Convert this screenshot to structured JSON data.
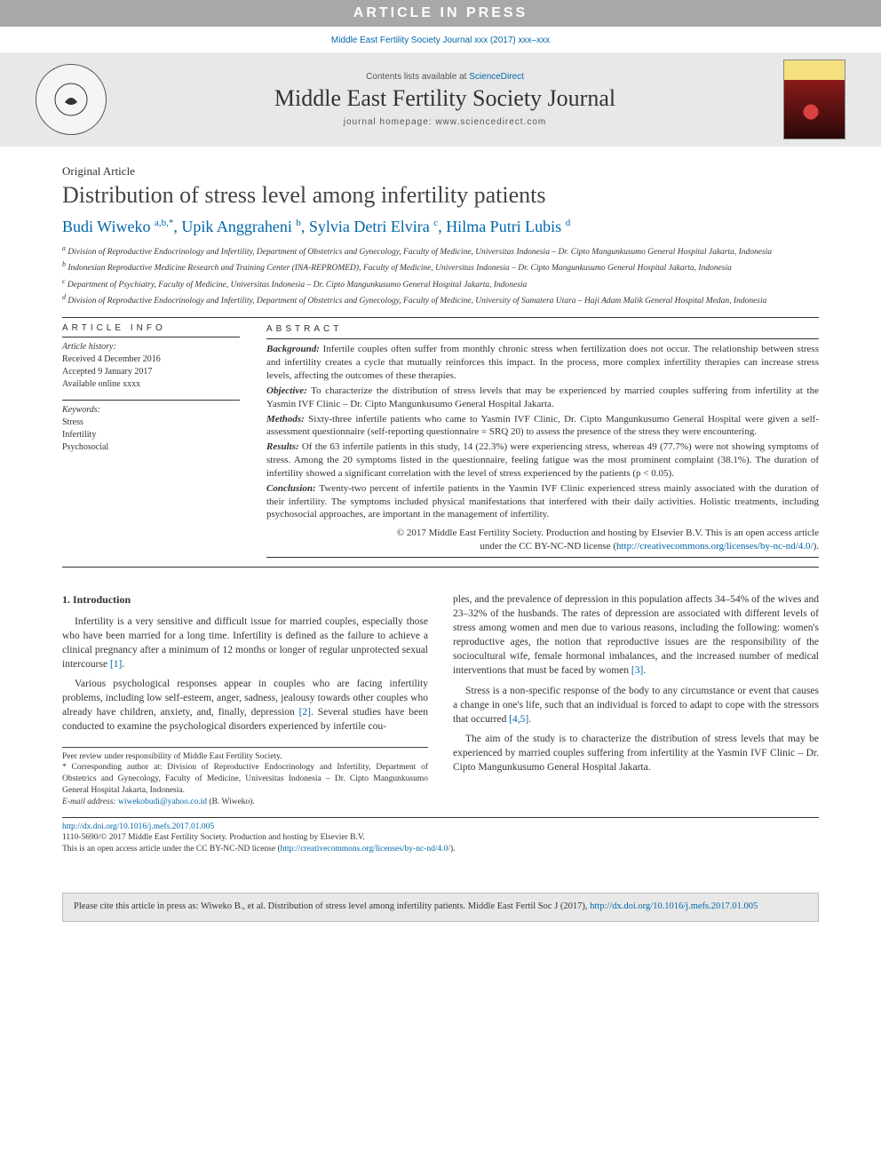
{
  "banner": "ARTICLE IN PRESS",
  "citation_top": "Middle East Fertility Society Journal xxx (2017) xxx–xxx",
  "masthead": {
    "contents_prefix": "Contents lists available at ",
    "contents_link": "ScienceDirect",
    "journal_name": "Middle East Fertility Society Journal",
    "homepage": "journal homepage: www.sciencedirect.com"
  },
  "article": {
    "type": "Original Article",
    "title": "Distribution of stress level among infertility patients",
    "authors_html": "Budi Wiweko <sup>a,b,*</sup>, Upik Anggraheni <sup>b</sup>, Sylvia Detri Elvira <sup>c</sup>, Hilma Putri Lubis <sup>d</sup>",
    "affiliations": [
      "a Division of Reproductive Endocrinology and Infertility, Department of Obstetrics and Gynecology, Faculty of Medicine, Universitas Indonesia – Dr. Cipto Mangunkusumo General Hospital Jakarta, Indonesia",
      "b Indonesian Reproductive Medicine Research and Training Center (INA-REPROMED), Faculty of Medicine, Universitas Indonesia – Dr. Cipto Mangunkusumo General Hospital Jakarta, Indonesia",
      "c Department of Psychiatry, Faculty of Medicine, Universitas Indonesia – Dr. Cipto Mangunkusumo General Hospital Jakarta, Indonesia",
      "d Division of Reproductive Endocrinology and Infertility, Department of Obstetrics and Gynecology, Faculty of Medicine, University of Sumatera Utara – Haji Adam Malik General Hospital Medan, Indonesia"
    ]
  },
  "info": {
    "heading": "ARTICLE INFO",
    "history_label": "Article history:",
    "history": [
      "Received 4 December 2016",
      "Accepted 9 January 2017",
      "Available online xxxx"
    ],
    "keywords_label": "Keywords:",
    "keywords": [
      "Stress",
      "Infertility",
      "Psychosocial"
    ]
  },
  "abstract": {
    "heading": "ABSTRACT",
    "sections": {
      "background_label": "Background:",
      "background": " Infertile couples often suffer from monthly chronic stress when fertilization does not occur. The relationship between stress and infertility creates a cycle that mutually reinforces this impact. In the process, more complex infertility therapies can increase stress levels, affecting the outcomes of these therapies.",
      "objective_label": "Objective:",
      "objective": " To characterize the distribution of stress levels that may be experienced by married couples suffering from infertility at the Yasmin IVF Clinic – Dr. Cipto Mangunkusumo General Hospital Jakarta.",
      "methods_label": "Methods:",
      "methods": " Sixty-three infertile patients who came to Yasmin IVF Clinic, Dr. Cipto Mangunkusumo General Hospital were given a self-assessment questionnaire (self-reporting questionnaire = SRQ 20) to assess the presence of the stress they were encountering.",
      "results_label": "Results:",
      "results": " Of the 63 infertile patients in this study, 14 (22.3%) were experiencing stress, whereas 49 (77.7%) were not showing symptoms of stress. Among the 20 symptoms listed in the questionnaire, feeling fatigue was the most prominent complaint (38.1%). The duration of infertility showed a significant correlation with the level of stress experienced by the patients (p < 0.05).",
      "conclusion_label": "Conclusion:",
      "conclusion": " Twenty-two percent of infertile patients in the Yasmin IVF Clinic experienced stress mainly associated with the duration of their infertility. The symptoms included physical manifestations that interfered with their daily activities. Holistic treatments, including psychosocial approaches, are important in the management of infertility."
    },
    "copyright": "© 2017 Middle East Fertility Society. Production and hosting by Elsevier B.V. This is an open access article",
    "license_prefix": "under the CC BY-NC-ND license (",
    "license_link": "http://creativecommons.org/licenses/by-nc-nd/4.0/",
    "license_suffix": ")."
  },
  "body": {
    "section1_heading": "1. Introduction",
    "col1": {
      "p1": "Infertility is a very sensitive and difficult issue for married couples, especially those who have been married for a long time. Infertility is defined as the failure to achieve a clinical pregnancy after a minimum of 12 months or longer of regular unprotected sexual intercourse ",
      "p1_ref": "[1]",
      "p1_end": ".",
      "p2": "Various psychological responses appear in couples who are facing infertility problems, including low self-esteem, anger, sadness, jealousy towards other couples who already have children, anxiety, and, finally, depression ",
      "p2_ref": "[2]",
      "p2_end": ". Several studies have been conducted to examine the psychological disorders experienced by infertile cou-"
    },
    "col2": {
      "p1": "ples, and the prevalence of depression in this population affects 34–54% of the wives and 23–32% of the husbands. The rates of depression are associated with different levels of stress among women and men due to various reasons, including the following: women's reproductive ages, the notion that reproductive issues are the responsibility of the sociocultural wife, female hormonal imbalances, and the increased number of medical interventions that must be faced by women ",
      "p1_ref": "[3]",
      "p1_end": ".",
      "p2": "Stress is a non-specific response of the body to any circumstance or event that causes a change in one's life, such that an individual is forced to adapt to cope with the stressors that occurred ",
      "p2_ref": "[4,5]",
      "p2_end": ".",
      "p3": "The aim of the study is to characterize the distribution of stress levels that may be experienced by married couples suffering from infertility at the Yasmin IVF Clinic – Dr. Cipto Mangunkusumo General Hospital Jakarta."
    }
  },
  "footnotes": {
    "peer": "Peer review under responsibility of Middle East Fertility Society.",
    "corr": "* Corresponding author at: Division of Reproductive Endocrinology and Infertility, Department of Obstetrics and Gynecology, Faculty of Medicine, Universitas Indonesia – Dr. Cipto Mangunkusumo General Hospital Jakarta, Indonesia.",
    "email_label": "E-mail address: ",
    "email": "wiwekobudi@yahoo.co.id",
    "email_suffix": " (B. Wiweko)."
  },
  "doi": {
    "url": "http://dx.doi.org/10.1016/j.mefs.2017.01.005",
    "issn_line": "1110-5690/© 2017 Middle East Fertility Society. Production and hosting by Elsevier B.V.",
    "license_prefix": "This is an open access article under the CC BY-NC-ND license (",
    "license_link": "http://creativecommons.org/licenses/by-nc-nd/4.0/",
    "license_suffix": ")."
  },
  "cite_box": {
    "prefix": "Please cite this article in press as: Wiweko B., et al. Distribution of stress level among infertility patients. Middle East Fertil Soc J (2017), ",
    "link": "http://dx.doi.org/10.1016/j.mefs.2017.01.005"
  },
  "colors": {
    "banner_bg": "#a8a8a8",
    "link": "#0066a8",
    "masthead_bg": "#e8e8e8",
    "text": "#333333"
  }
}
